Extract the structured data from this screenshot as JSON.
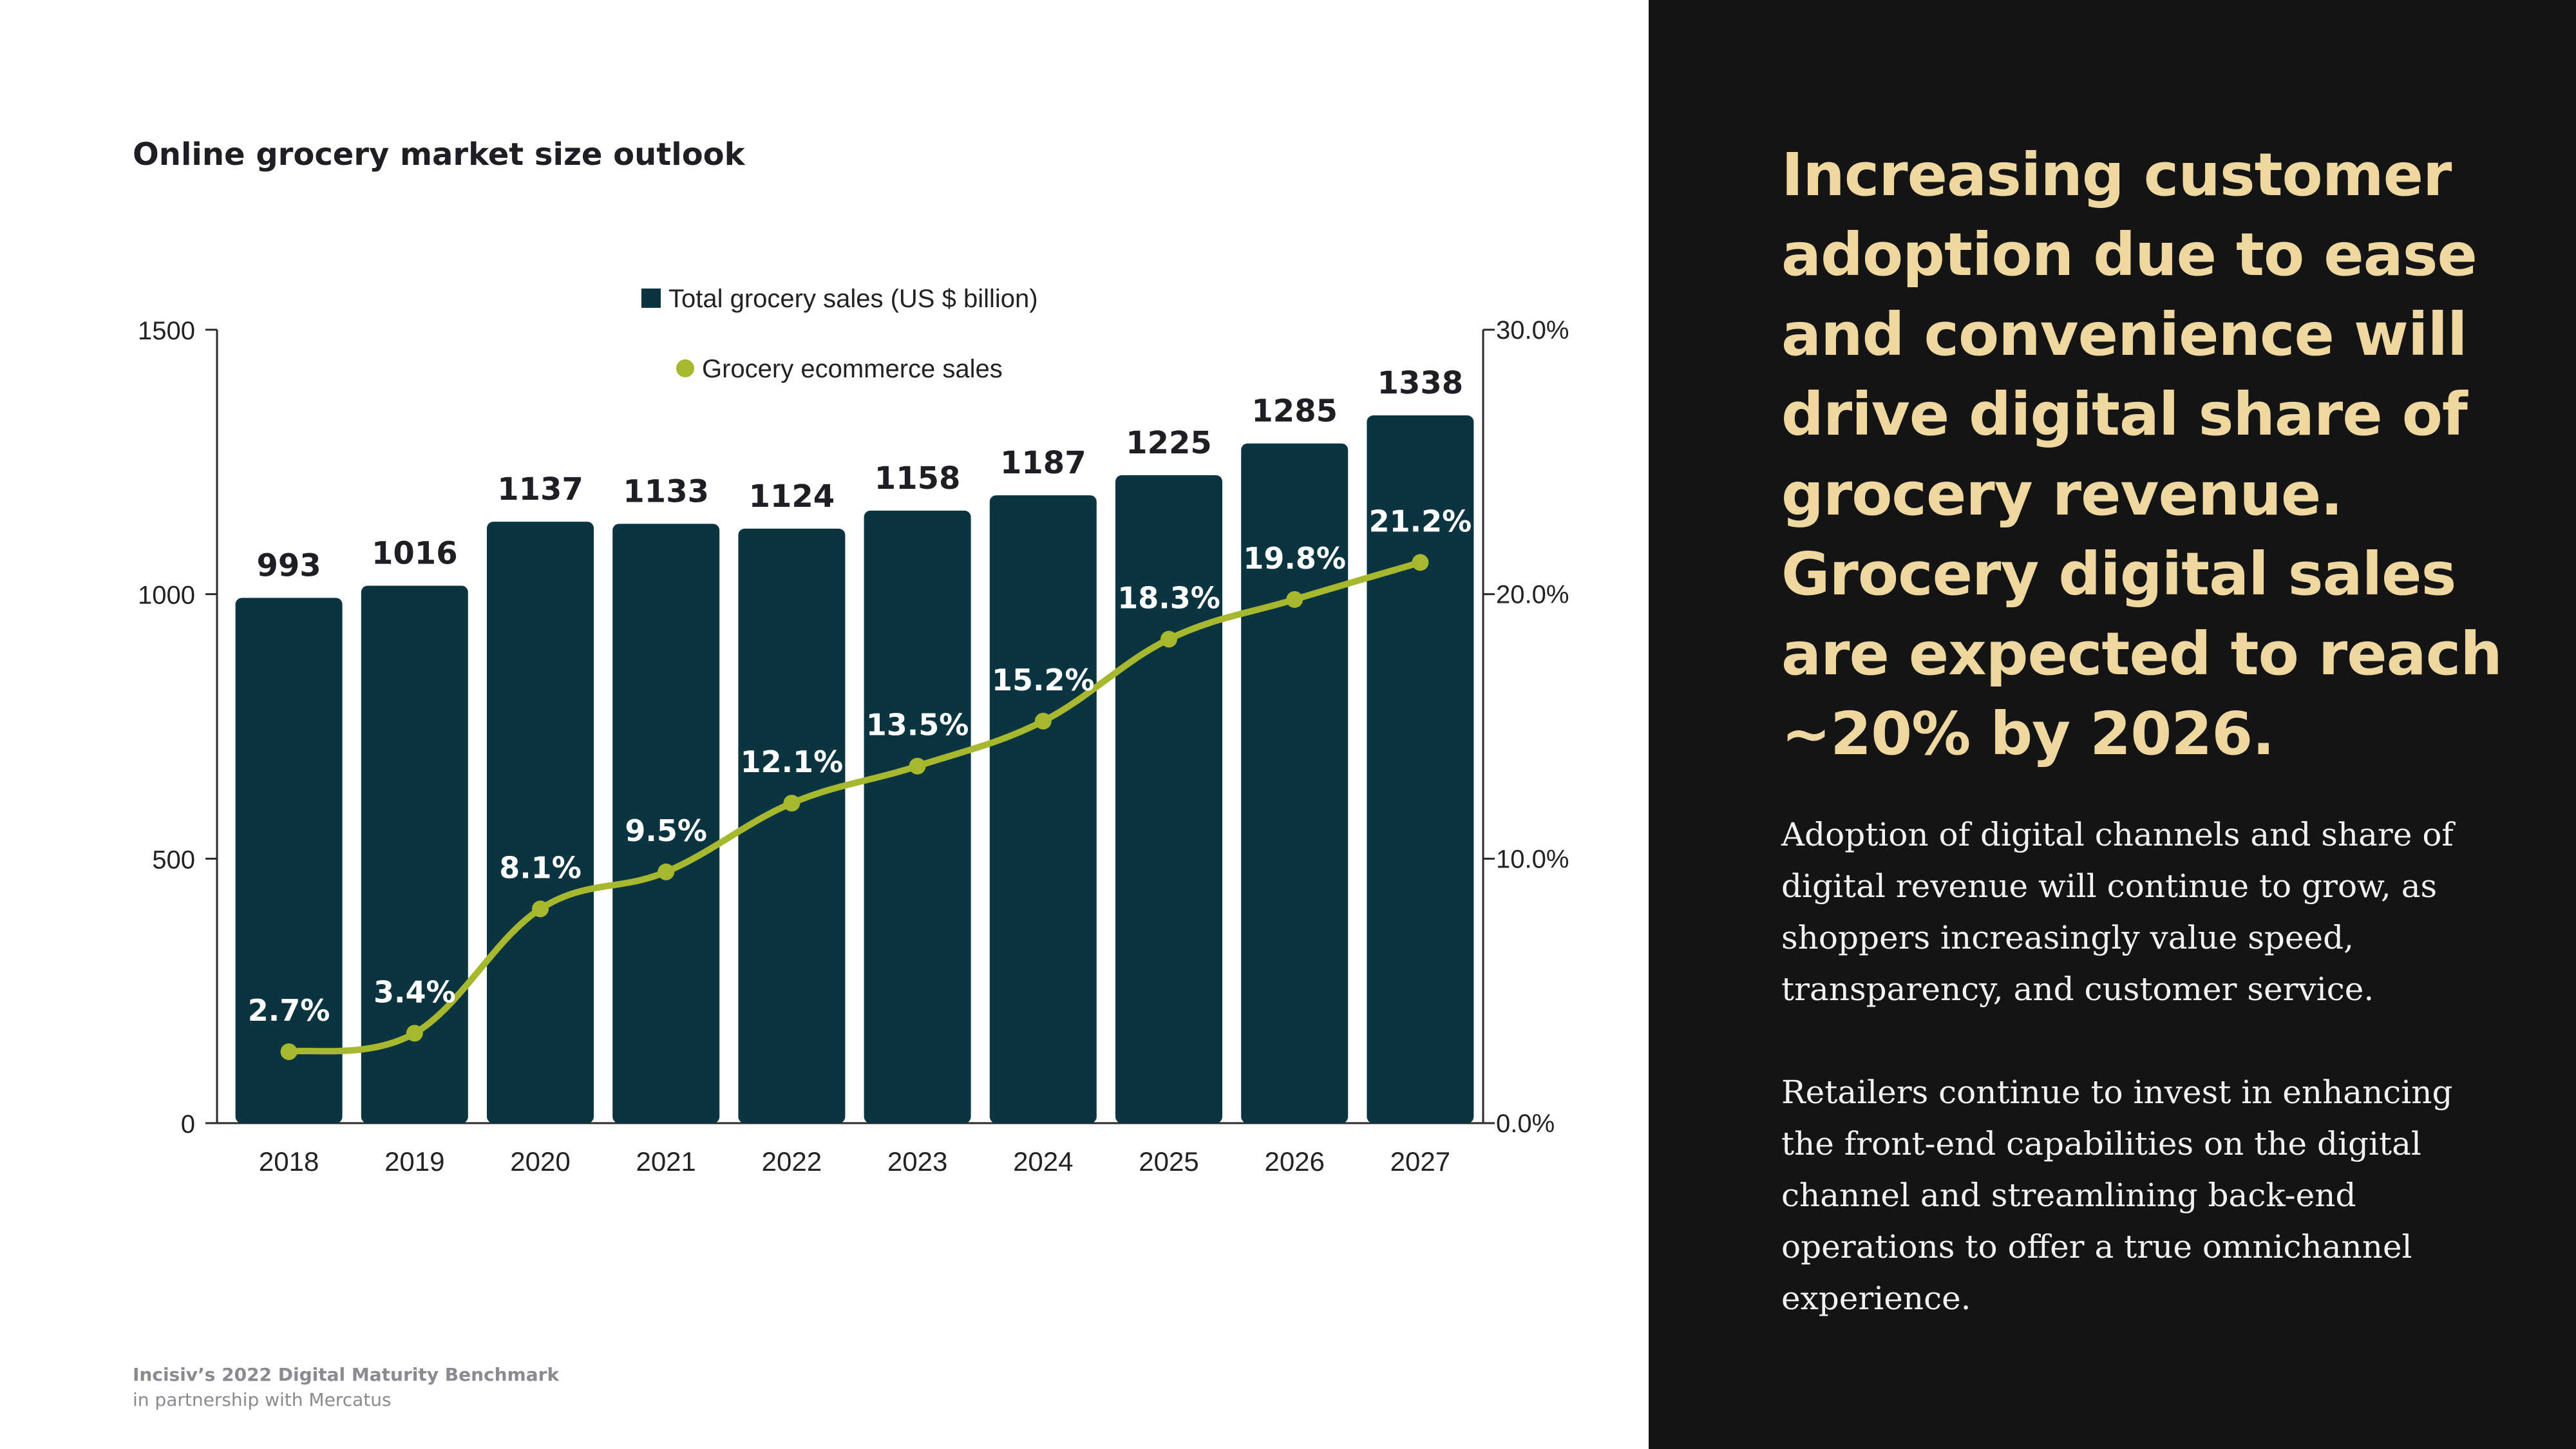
{
  "chart_title": "Online grocery market size outlook",
  "footer": {
    "line1": "Incisiv’s 2022 Digital Maturity Benchmark",
    "line2": "in partnership with Mercatus"
  },
  "headline": "Increasing customer adoption due to ease and convenience will drive digital share of grocery revenue. Grocery digital sales are expected to reach ~20% by 2026.",
  "paragraphs": [
    "Adoption of digital channels and share of digital revenue will continue to grow, as shoppers increasingly value speed, transparency, and customer service.",
    "Retailers continue to invest in enhancing the front-end capabilities on the digital channel and streamlining back-end operations to offer a true omnichannel experience."
  ],
  "colors": {
    "bar": "#0b3441",
    "line": "#a8b82e",
    "right_panel_bg": "#141414",
    "headline": "#eed8a0"
  },
  "chart_data": {
    "type": "bar",
    "title": "Online grocery market size outlook",
    "categories": [
      "2018",
      "2019",
      "2020",
      "2021",
      "2022",
      "2023",
      "2024",
      "2025",
      "2026",
      "2027"
    ],
    "series": [
      {
        "name": "Total grocery sales (US $ billion)",
        "type": "bar",
        "axis": "left",
        "values": [
          993,
          1016,
          1137,
          1133,
          1124,
          1158,
          1187,
          1225,
          1285,
          1338
        ],
        "labels": [
          "993",
          "1016",
          "1137",
          "1133",
          "1124",
          "1158",
          "1187",
          "1225",
          "1285",
          "1338"
        ]
      },
      {
        "name": "Grocery ecommerce sales",
        "type": "line",
        "axis": "right",
        "values": [
          2.7,
          3.4,
          8.1,
          9.5,
          12.1,
          13.5,
          15.2,
          18.3,
          19.8,
          21.2
        ],
        "labels": [
          "2.7%",
          "3.4%",
          "8.1%",
          "9.5%",
          "12.1%",
          "13.5%",
          "15.2%",
          "18.3%",
          "19.8%",
          "21.2%"
        ]
      }
    ],
    "y_left": {
      "ylim": [
        0,
        1500
      ],
      "ticks": [
        0,
        500,
        1000,
        1500
      ],
      "tick_labels": [
        "0",
        "500",
        "1000",
        "1500"
      ]
    },
    "y_right": {
      "ylim": [
        0,
        30
      ],
      "ticks": [
        0,
        10,
        20,
        30
      ],
      "tick_labels": [
        "0.0%",
        "10.0%",
        "20.0%",
        "30.0%"
      ]
    },
    "legend_position": "top-center",
    "grid": false
  }
}
